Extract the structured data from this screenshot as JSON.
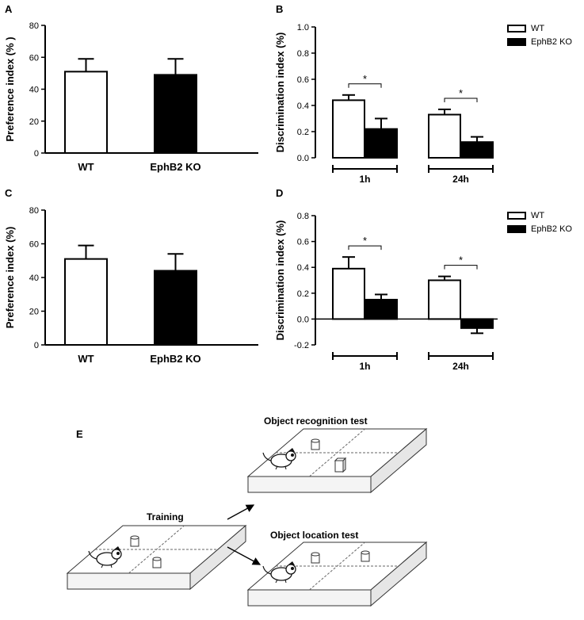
{
  "panel_letters": {
    "a": "A",
    "b": "B",
    "c": "C",
    "d": "D",
    "e": "E"
  },
  "legend": {
    "wt": "WT",
    "ko": "EphB2 KO"
  },
  "colors": {
    "wt": "#ffffff",
    "ko": "#000000",
    "axis": "#000000"
  },
  "chart_data": [
    {
      "panel": "A",
      "type": "bar",
      "ylabel": "Preference index (% )",
      "ylim": [
        0,
        80
      ],
      "yticks": [
        0,
        20,
        40,
        60,
        80
      ],
      "categories": [
        "WT",
        "EphB2 KO"
      ],
      "values": [
        51,
        49
      ],
      "errors": [
        8,
        10
      ],
      "fills": [
        "#ffffff",
        "#000000"
      ]
    },
    {
      "panel": "B",
      "type": "bar",
      "ylabel": "Discrimination index (%)",
      "ylim": [
        0,
        1.0
      ],
      "yticks": [
        0.0,
        0.2,
        0.4,
        0.6,
        0.8,
        1.0
      ],
      "groups": [
        "1h",
        "24h"
      ],
      "series": [
        {
          "name": "WT",
          "values": [
            0.44,
            0.33
          ],
          "errors": [
            0.04,
            0.04
          ]
        },
        {
          "name": "EphB2 KO",
          "values": [
            0.22,
            0.12
          ],
          "errors": [
            0.08,
            0.04
          ]
        }
      ],
      "significance": [
        "*",
        "*"
      ],
      "legend_position": "top-right"
    },
    {
      "panel": "C",
      "type": "bar",
      "ylabel": "Preference index (%)",
      "ylim": [
        0,
        80
      ],
      "yticks": [
        0,
        20,
        40,
        60,
        80
      ],
      "categories": [
        "WT",
        "EphB2 KO"
      ],
      "values": [
        51,
        44
      ],
      "errors": [
        8,
        10
      ],
      "fills": [
        "#ffffff",
        "#000000"
      ]
    },
    {
      "panel": "D",
      "type": "bar",
      "ylabel": "Discrimination index (%)",
      "ylim": [
        -0.2,
        0.8
      ],
      "yticks": [
        -0.2,
        0.0,
        0.2,
        0.4,
        0.6,
        0.8
      ],
      "groups": [
        "1h",
        "24h"
      ],
      "series": [
        {
          "name": "WT",
          "values": [
            0.39,
            0.3
          ],
          "errors": [
            0.09,
            0.03
          ]
        },
        {
          "name": "EphB2 KO",
          "values": [
            0.15,
            -0.07
          ],
          "errors": [
            0.04,
            0.04
          ]
        }
      ],
      "significance": [
        "*",
        "*"
      ],
      "legend_position": "top-right"
    }
  ],
  "diagram": {
    "training": "Training",
    "object_recognition": "Object recognition test",
    "object_location": "Object location test"
  }
}
